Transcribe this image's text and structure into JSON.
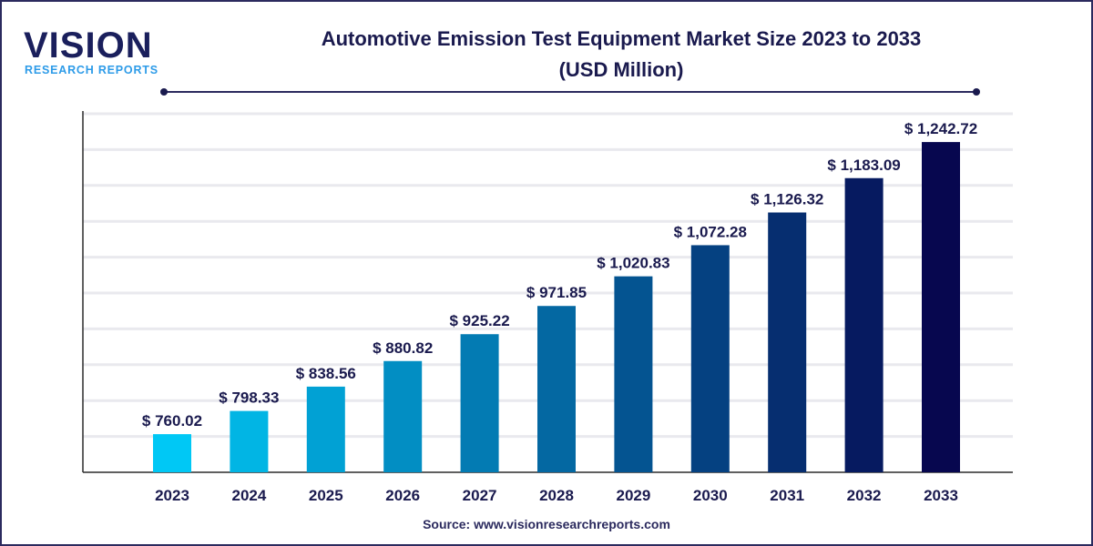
{
  "logo": {
    "word": "VISION",
    "sub": "RESEARCH REPORTS"
  },
  "title_line1": "Automotive Emission Test Equipment Market Size 2023 to 2033",
  "title_line2": "(USD Million)",
  "source": "Source: www.visionresearchreports.com",
  "chart_data": {
    "type": "bar",
    "title": "Automotive Emission Test Equipment Market Size 2023 to 2033 (USD Million)",
    "categories": [
      "2023",
      "2024",
      "2025",
      "2026",
      "2027",
      "2028",
      "2029",
      "2030",
      "2031",
      "2032",
      "2033"
    ],
    "values": [
      760.02,
      798.33,
      838.56,
      880.82,
      925.22,
      971.85,
      1020.83,
      1072.28,
      1126.32,
      1183.09,
      1242.72
    ],
    "labels": [
      "$ 760.02",
      "$ 798.33",
      "$ 838.56",
      "$ 880.82",
      "$ 925.22",
      "$ 971.85",
      "$ 1,020.83",
      "$ 1,072.28",
      "$ 1,126.32",
      "$ 1,183.09",
      "$ 1,242.72"
    ],
    "xlabel": "",
    "ylabel": "",
    "ylim": [
      697,
      1294
    ],
    "grid": true,
    "colors": {
      "start": "#00c8f5",
      "end": "#07074f",
      "text": "#1a1a4e",
      "grid": "#e9e9ee",
      "axis": "#2b2b2b"
    }
  }
}
